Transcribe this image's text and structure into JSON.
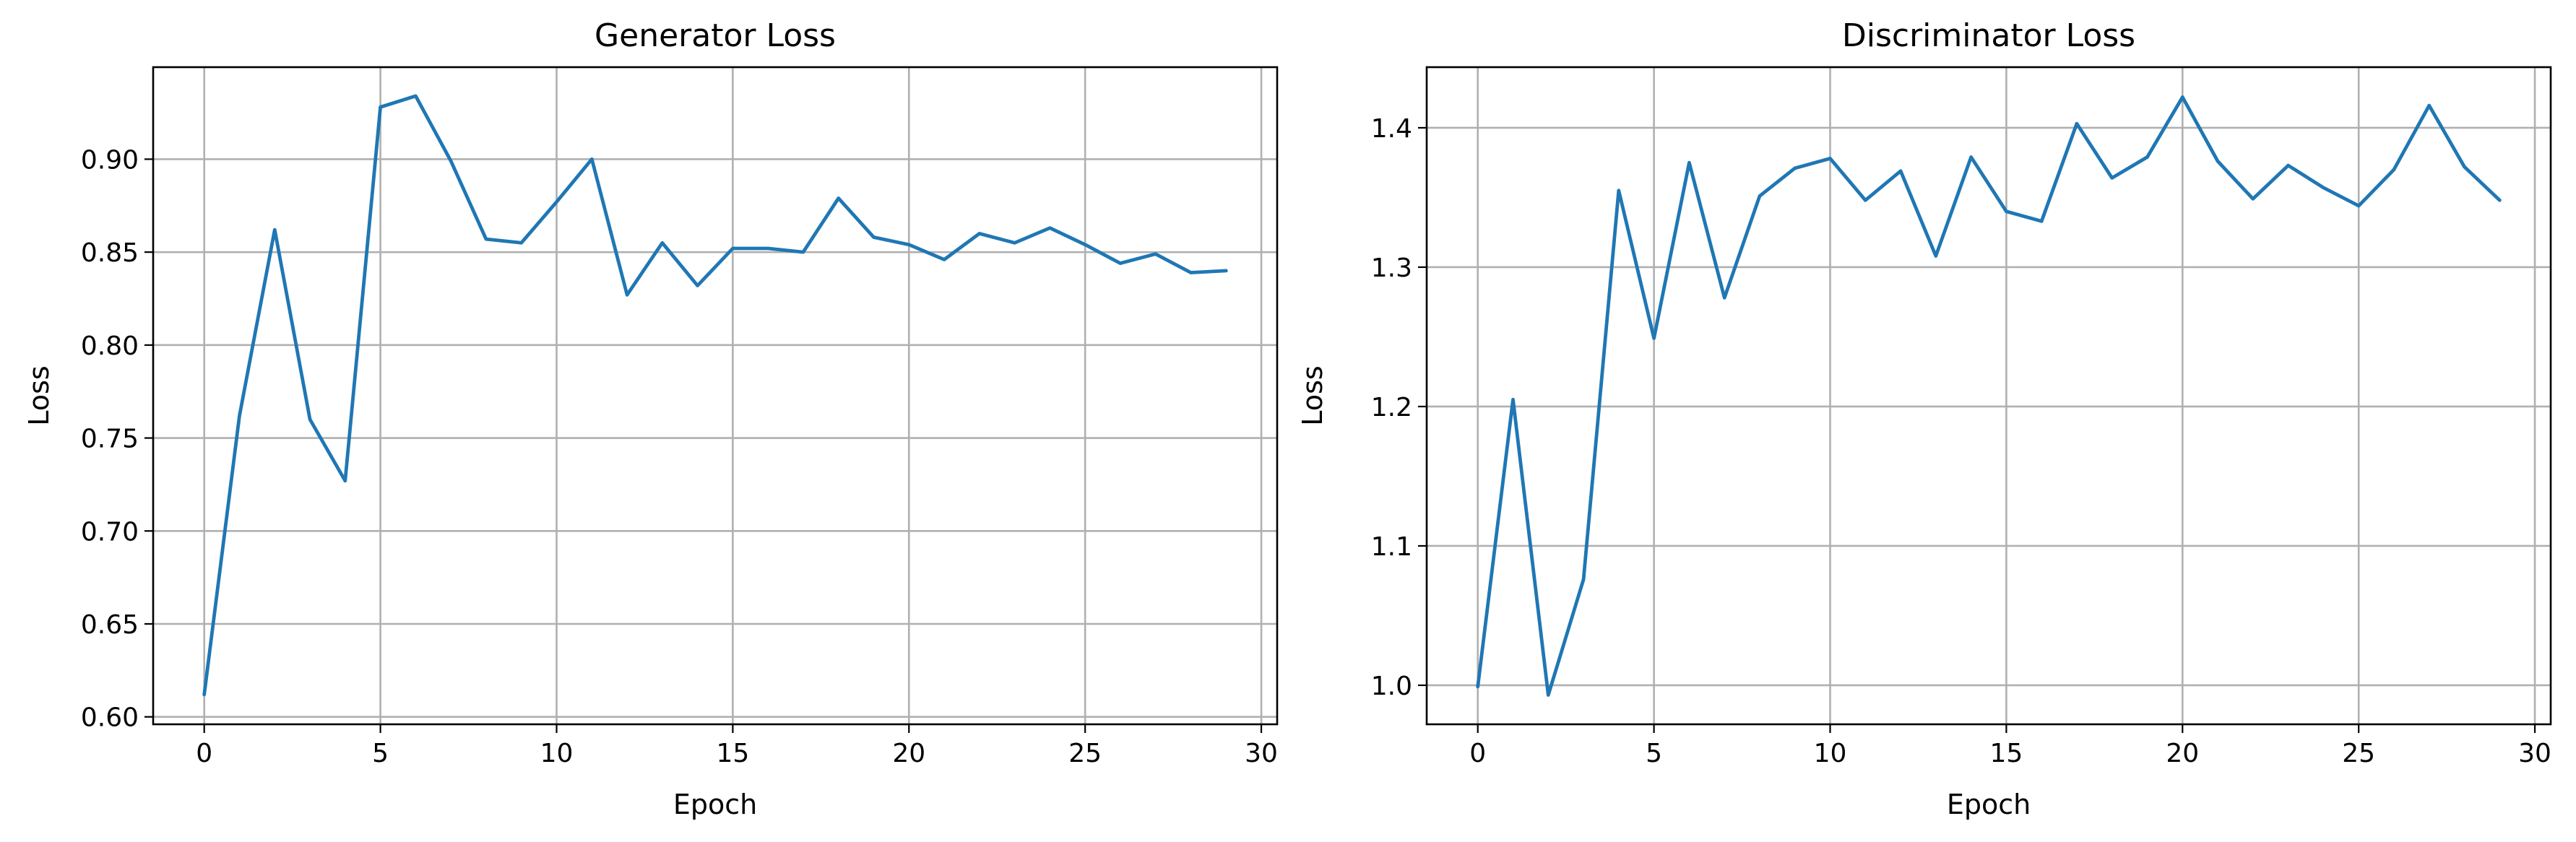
{
  "chart_data": [
    {
      "type": "line",
      "title": "Generator Loss",
      "xlabel": "Epoch",
      "ylabel": "Loss",
      "xlim": [
        -1.45,
        30.45
      ],
      "ylim": [
        0.596,
        0.9495
      ],
      "xticks": [
        0,
        5,
        10,
        15,
        20,
        25,
        30
      ],
      "yticks": [
        0.6,
        0.65,
        0.7,
        0.75,
        0.8,
        0.85,
        0.9
      ],
      "ytick_decimals": 2,
      "grid": true,
      "series": [
        {
          "color": "#1f77b4",
          "x": [
            0,
            1,
            2,
            3,
            4,
            5,
            6,
            7,
            8,
            9,
            10,
            11,
            12,
            13,
            14,
            15,
            16,
            17,
            18,
            19,
            20,
            21,
            22,
            23,
            24,
            25,
            26,
            27,
            28,
            29
          ],
          "y": [
            0.612,
            0.762,
            0.862,
            0.76,
            0.727,
            0.928,
            0.934,
            0.899,
            0.857,
            0.855,
            0.877,
            0.9,
            0.827,
            0.855,
            0.832,
            0.852,
            0.852,
            0.85,
            0.879,
            0.858,
            0.854,
            0.846,
            0.86,
            0.855,
            0.863,
            0.854,
            0.844,
            0.849,
            0.839,
            0.84
          ]
        }
      ]
    },
    {
      "type": "line",
      "title": "Discriminator Loss",
      "xlabel": "Epoch",
      "ylabel": "Loss",
      "xlim": [
        -1.45,
        30.45
      ],
      "ylim": [
        0.972,
        1.4435
      ],
      "xticks": [
        0,
        5,
        10,
        15,
        20,
        25,
        30
      ],
      "yticks": [
        1.0,
        1.1,
        1.2,
        1.3,
        1.4
      ],
      "ytick_decimals": 1,
      "grid": true,
      "series": [
        {
          "color": "#1f77b4",
          "x": [
            0,
            1,
            2,
            3,
            4,
            5,
            6,
            7,
            8,
            9,
            10,
            11,
            12,
            13,
            14,
            15,
            16,
            17,
            18,
            19,
            20,
            21,
            22,
            23,
            24,
            25,
            26,
            27,
            28,
            29
          ],
          "y": [
            0.999,
            1.205,
            0.993,
            1.076,
            1.355,
            1.249,
            1.375,
            1.278,
            1.351,
            1.371,
            1.378,
            1.348,
            1.369,
            1.308,
            1.379,
            1.34,
            1.333,
            1.403,
            1.364,
            1.379,
            1.422,
            1.376,
            1.349,
            1.373,
            1.357,
            1.344,
            1.37,
            1.416,
            1.372,
            1.348
          ]
        }
      ]
    }
  ]
}
